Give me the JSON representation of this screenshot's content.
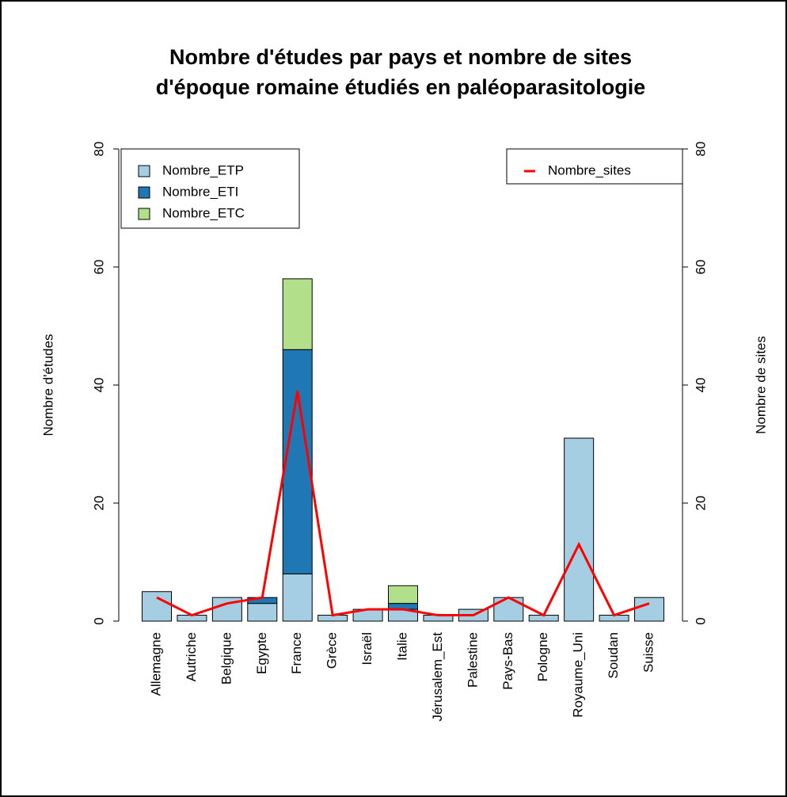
{
  "chart_data": {
    "type": "bar",
    "title": [
      "Nombre d'études par pays et nombre de sites",
      "d'époque romaine étudiés en paléoparasitologie"
    ],
    "ylabel": "Nombre d'études",
    "y2label": "Nombre de sites",
    "categories": [
      "Allemagne",
      "Autriche",
      "Belgique",
      "Egypte",
      "France",
      "Grèce",
      "Israël",
      "Italie",
      "Jérusalem_Est",
      "Palestine",
      "Pays-Bas",
      "Pologne",
      "Royaume_Uni",
      "Soudan",
      "Suisse"
    ],
    "series": [
      {
        "name": "Nombre_ETP",
        "color": "#a6cee3",
        "values": [
          5,
          1,
          4,
          3,
          8,
          1,
          2,
          2,
          1,
          2,
          4,
          1,
          31,
          1,
          4
        ]
      },
      {
        "name": "Nombre_ETI",
        "color": "#1f78b4",
        "values": [
          0,
          0,
          0,
          1,
          38,
          0,
          0,
          1,
          0,
          0,
          0,
          0,
          0,
          0,
          0
        ]
      },
      {
        "name": "Nombre_ETC",
        "color": "#b2df8a",
        "values": [
          0,
          0,
          0,
          0,
          12,
          0,
          0,
          3,
          0,
          0,
          0,
          0,
          0,
          0,
          0
        ]
      },
      {
        "name": "Nombre_sites",
        "color": "#ff0000",
        "type": "line",
        "axis": "y2",
        "values": [
          4,
          1,
          3,
          4,
          39,
          1,
          2,
          2,
          1,
          1,
          4,
          1,
          13,
          1,
          3
        ]
      }
    ],
    "stacked": true,
    "ylim": [
      0,
      80
    ],
    "yticks": [
      0,
      20,
      40,
      60,
      80
    ],
    "y2lim": [
      0,
      80
    ],
    "y2ticks": [
      0,
      20,
      40,
      60,
      80
    ],
    "legend": "topleft",
    "legend2": "topright"
  }
}
